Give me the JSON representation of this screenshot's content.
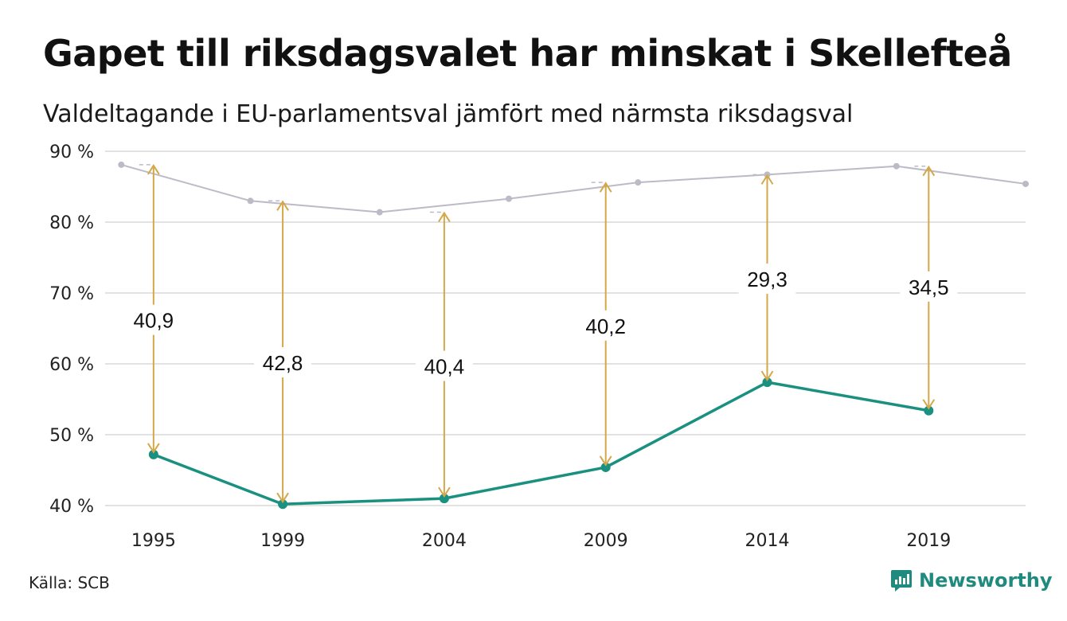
{
  "title": "Gapet till riksdagsvalet har minskat i Skellefteå",
  "subtitle": "Valdeltagande i EU-parlamentsval jämfört med närmsta riksdagsval",
  "footer": {
    "source": "Källa: SCB",
    "brand": "Newsworthy"
  },
  "colors": {
    "eu": "#1a9080",
    "riksdag": "#bdbac7",
    "arrow": "#d4a84a",
    "grid": "#e2e2e2"
  },
  "chart_data": {
    "type": "line",
    "ylim": [
      40,
      90
    ],
    "xlim": [
      1995,
      2022
    ],
    "y_ticks": [
      40,
      50,
      60,
      70,
      80,
      90
    ],
    "y_tick_labels": [
      "40 %",
      "50 %",
      "60 %",
      "70 %",
      "80 %",
      "90 %"
    ],
    "x_ticks": [
      1995,
      1999,
      2004,
      2009,
      2014,
      2019
    ],
    "x_tick_labels": [
      "1995",
      "1999",
      "2004",
      "2009",
      "2014",
      "2019"
    ],
    "series": [
      {
        "key": "riksdag",
        "x": [
          1994,
          1998,
          2002,
          2006,
          2010,
          2014,
          2018,
          2022
        ],
        "values": [
          88.1,
          83.0,
          81.4,
          83.3,
          85.6,
          86.7,
          87.9,
          85.4
        ]
      },
      {
        "key": "eu",
        "x": [
          1995,
          1999,
          2004,
          2009,
          2014,
          2019
        ],
        "values": [
          47.2,
          40.2,
          41.0,
          45.4,
          57.4,
          53.4
        ]
      }
    ],
    "gaps": [
      {
        "x": 1995,
        "top": 88.1,
        "bottom": 47.2,
        "label": "40,9",
        "label_y": 66.1
      },
      {
        "x": 1999,
        "top": 83.0,
        "bottom": 40.2,
        "label": "42,8",
        "label_y": 60.1
      },
      {
        "x": 2004,
        "top": 81.4,
        "bottom": 41.0,
        "label": "40,4",
        "label_y": 59.6
      },
      {
        "x": 2009,
        "top": 85.6,
        "bottom": 45.4,
        "label": "40,2",
        "label_y": 65.3
      },
      {
        "x": 2014,
        "top": 86.7,
        "bottom": 57.4,
        "label": "29,3",
        "label_y": 71.9
      },
      {
        "x": 2019,
        "top": 87.9,
        "bottom": 53.4,
        "label": "34,5",
        "label_y": 70.8
      }
    ]
  }
}
